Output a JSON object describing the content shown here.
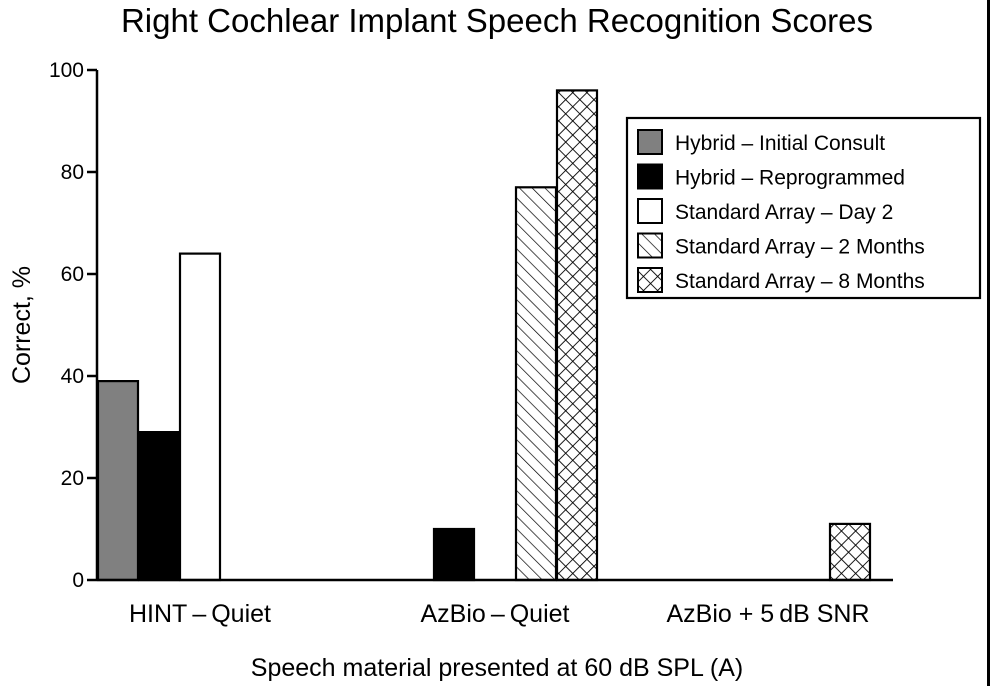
{
  "chart_data": {
    "type": "bar",
    "title": "Right Cochlear Implant Speech Recognition Scores",
    "xlabel": "Speech material presented at 60 dB SPL (A)",
    "ylabel": "Correct, %",
    "ylim": [
      0,
      100
    ],
    "yticks": [
      "0",
      "20",
      "40",
      "60",
      "80",
      "100"
    ],
    "categories": [
      "HINT – Quiet",
      "AzBio – Quiet",
      "AzBio + 5 dB SNR"
    ],
    "legend_position": "top-right",
    "series": [
      {
        "name": "Hybrid – Initial Consult",
        "fill": "#808080",
        "pattern": "solid",
        "values": [
          39,
          null,
          null
        ]
      },
      {
        "name": "Hybrid – Reprogrammed",
        "fill": "#000000",
        "pattern": "solid",
        "values": [
          29,
          10,
          null
        ]
      },
      {
        "name": "Standard Array – Day 2",
        "fill": "#ffffff",
        "pattern": "solid",
        "values": [
          64,
          null,
          null
        ]
      },
      {
        "name": "Standard Array – 2 Months",
        "fill": "#ffffff",
        "pattern": "diagonal-hatch",
        "values": [
          null,
          77,
          null
        ]
      },
      {
        "name": "Standard Array – 8 Months",
        "fill": "#ffffff",
        "pattern": "crosshatch",
        "values": [
          null,
          96,
          11
        ]
      }
    ]
  }
}
